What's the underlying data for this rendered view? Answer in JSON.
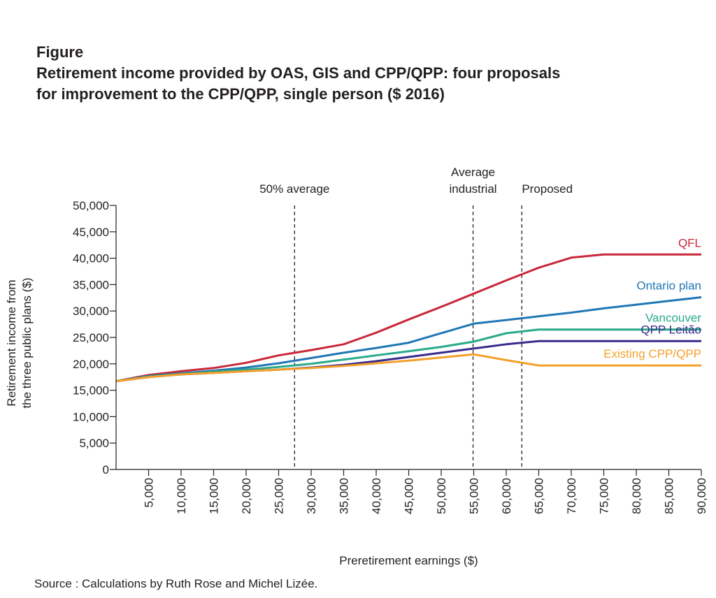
{
  "figure": {
    "label": "Figure",
    "title_lines": [
      "Retirement income provided by OAS, GIS and CPP/QPP: four proposals",
      "for improvement to the CPP/QPP, single person ($ 2016)"
    ],
    "source": "Source : Calculations by Ruth Rose and Michel Lizée."
  },
  "chart_data": {
    "type": "line",
    "title": "Retirement income provided by OAS, GIS and CPP/QPP: four proposals for improvement to the CPP/QPP, single person ($ 2016)",
    "xlabel": "Preretirement earnings ($)",
    "ylabel_lines": [
      "Retirement income from",
      "the three public plans ($)"
    ],
    "xlim": [
      0,
      90000
    ],
    "ylim": [
      0,
      50000
    ],
    "x_ticks": [
      5000,
      10000,
      15000,
      20000,
      25000,
      30000,
      35000,
      40000,
      45000,
      50000,
      55000,
      60000,
      65000,
      70000,
      75000,
      80000,
      85000,
      90000
    ],
    "x_tick_labels": [
      "5,000",
      "10,000",
      "15,000",
      "20,000",
      "25,000",
      "30,000",
      "35,000",
      "40,000",
      "45,000",
      "50,000",
      "55,000",
      "60,000",
      "65,000",
      "70,000",
      "75,000",
      "80,000",
      "85,000",
      "90,000"
    ],
    "y_ticks": [
      0,
      5000,
      10000,
      15000,
      20000,
      25000,
      30000,
      35000,
      40000,
      45000,
      50000
    ],
    "y_tick_labels": [
      "0",
      "5,000",
      "10,000",
      "15,000",
      "20,000",
      "25,000",
      "30,000",
      "35,000",
      "40,000",
      "45,000",
      "50,000"
    ],
    "reference_lines": [
      {
        "x": 27450,
        "label_lines": [
          "50% average"
        ]
      },
      {
        "x": 54900,
        "label_lines": [
          "Average",
          "industrial"
        ]
      },
      {
        "x": 62400,
        "label_lines": [
          "Proposed"
        ]
      }
    ],
    "series": [
      {
        "name": "QFL",
        "color": "#c8283a",
        "x": [
          0,
          5000,
          10000,
          15000,
          20000,
          25000,
          30000,
          35000,
          40000,
          45000,
          50000,
          55000,
          60000,
          65000,
          70000,
          75000,
          90000
        ],
        "y": [
          16700,
          17900,
          18600,
          19200,
          20200,
          21600,
          22600,
          23700,
          25900,
          28400,
          30800,
          33300,
          35800,
          38200,
          40100,
          40700,
          40700
        ]
      },
      {
        "name": "Ontario plan",
        "color": "#1f77b4",
        "x": [
          0,
          5000,
          10000,
          15000,
          20000,
          25000,
          30000,
          35000,
          40000,
          45000,
          55000,
          60000,
          65000,
          70000,
          75000,
          80000,
          85000,
          90000
        ],
        "y": [
          16700,
          17700,
          18200,
          18700,
          19300,
          20100,
          21100,
          22100,
          23000,
          24000,
          27600,
          28300,
          29000,
          29700,
          30500,
          31200,
          31900,
          32600
        ]
      },
      {
        "name": "Vancouver",
        "color": "#2aaa8a",
        "x": [
          0,
          5000,
          10000,
          15000,
          20000,
          25000,
          30000,
          35000,
          40000,
          45000,
          50000,
          55000,
          60000,
          65000,
          90000
        ],
        "y": [
          16700,
          17600,
          18100,
          18500,
          18900,
          19400,
          20000,
          20800,
          21600,
          22400,
          23200,
          24200,
          25800,
          26500,
          26500
        ]
      },
      {
        "name": "QPP Leitão",
        "color": "#3a2a8c",
        "x": [
          0,
          5000,
          10000,
          15000,
          20000,
          25000,
          30000,
          35000,
          40000,
          45000,
          50000,
          55000,
          60000,
          65000,
          90000
        ],
        "y": [
          16700,
          17500,
          18000,
          18300,
          18600,
          18900,
          19300,
          19800,
          20500,
          21300,
          22100,
          22900,
          23700,
          24300,
          24300
        ]
      },
      {
        "name": "Existing CPP/QPP",
        "color": "#f5a02a",
        "x": [
          0,
          5000,
          10000,
          15000,
          20000,
          25000,
          30000,
          35000,
          40000,
          45000,
          50000,
          55000,
          60000,
          65000,
          90000
        ],
        "y": [
          16700,
          17500,
          18000,
          18300,
          18600,
          18900,
          19200,
          19600,
          20100,
          20600,
          21200,
          21800,
          20700,
          19700,
          19700
        ]
      }
    ]
  }
}
